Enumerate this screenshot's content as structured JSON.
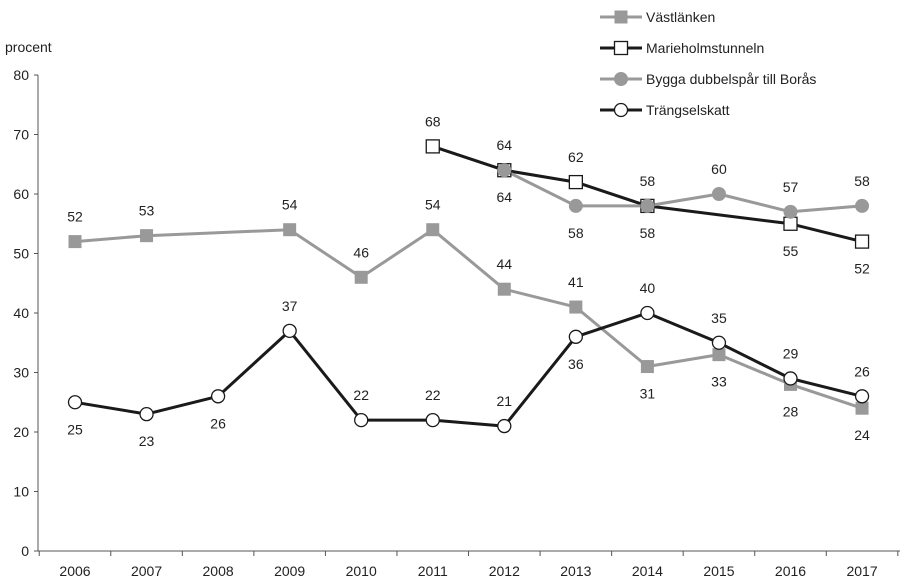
{
  "chart_data": {
    "type": "line",
    "title": "",
    "xlabel": "",
    "ylabel": "procent",
    "ylim": [
      0,
      80
    ],
    "yticks": [
      0,
      10,
      20,
      30,
      40,
      50,
      60,
      70,
      80
    ],
    "categories": [
      "2006",
      "2007",
      "2008",
      "2009",
      "2010",
      "2011",
      "2012",
      "2013",
      "2014",
      "2015",
      "2016",
      "2017"
    ],
    "grid": false,
    "legend_position": "top-right",
    "series": [
      {
        "name": "Västlänken",
        "color": "#999999",
        "marker": "square-filled",
        "values": [
          52,
          53,
          null,
          54,
          46,
          54,
          44,
          41,
          31,
          33,
          28,
          24
        ],
        "labels": [
          "52",
          "53",
          null,
          "54",
          "46",
          "54",
          "44",
          "41",
          "31",
          "33",
          "28",
          "24"
        ]
      },
      {
        "name": "Marieholmstunneln",
        "color": "#1a1a1a",
        "marker": "square-open",
        "values": [
          null,
          null,
          null,
          null,
          null,
          68,
          64,
          62,
          58,
          null,
          55,
          52
        ],
        "labels": [
          null,
          null,
          null,
          null,
          null,
          "68",
          "64",
          "62",
          "58",
          null,
          "55",
          "52"
        ]
      },
      {
        "name": "Bygga dubbelspår till Borås",
        "color": "#999999",
        "marker": "circle-filled",
        "values": [
          null,
          null,
          null,
          null,
          null,
          null,
          64,
          58,
          58,
          60,
          57,
          58
        ],
        "labels": [
          null,
          null,
          null,
          null,
          null,
          null,
          "64",
          "58",
          "58",
          "60",
          "57",
          "58"
        ]
      },
      {
        "name": "Trängselskatt",
        "color": "#1a1a1a",
        "marker": "circle-open",
        "values": [
          25,
          23,
          26,
          37,
          22,
          22,
          21,
          36,
          40,
          35,
          29,
          26
        ],
        "labels": [
          "25",
          "23",
          "26",
          "37",
          "22",
          "22",
          "21",
          "36",
          "40",
          "35",
          "29",
          "26"
        ]
      }
    ]
  }
}
